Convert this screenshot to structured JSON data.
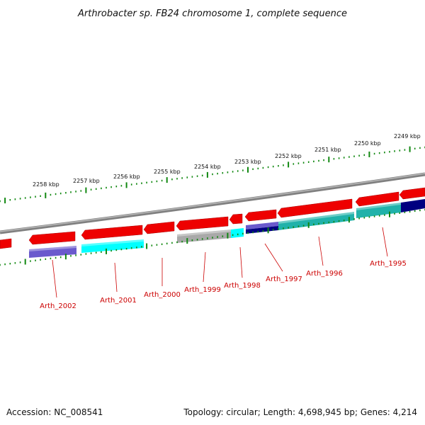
{
  "title": "Arthrobacter sp. FB24 chromosome 1, complete sequence",
  "footer": {
    "accession": "Accession: NC_008541",
    "topology": "Topology: circular; Length: 4,698,945 bp; Genes: 4,214"
  },
  "scale_labels": [
    "2258 kbp",
    "2257 kbp",
    "2256 kbp",
    "2255 kbp",
    "2254 kbp",
    "2253 kbp",
    "2252 kbp",
    "2251 kbp",
    "2250 kbp",
    "2249 kbp"
  ],
  "gene_labels": [
    "Arth_2002",
    "Arth_2001",
    "Arth_2000",
    "Arth_1999",
    "Arth_1998",
    "Arth_1997",
    "Arth_1996",
    "Arth_1995"
  ],
  "colors": {
    "forward_cds": "#ee0000",
    "category_blue_violet": "#6a5acd",
    "category_cyan": "#00ffff",
    "category_dark_cyan": "#20b2aa",
    "category_navy": "#000080",
    "category_grey": "#a9a9a9",
    "backbone": "#808080",
    "ticks": "#118811",
    "gene_label": "#cc0000"
  }
}
